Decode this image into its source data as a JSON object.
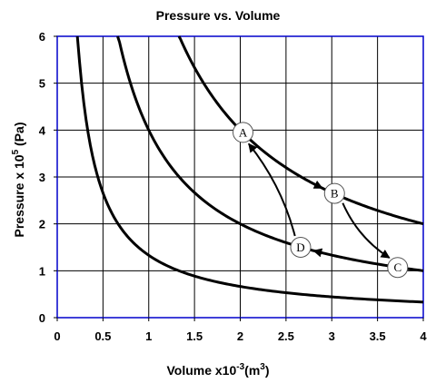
{
  "chart_data": {
    "type": "line",
    "title": "Pressure vs. Volume",
    "xlabel": {
      "text": "Volume x10",
      "sup": "-3",
      "unit": "(m",
      "unit_sup": "3",
      "close": ")"
    },
    "ylabel": {
      "text": "Pressure x 10",
      "sup": "5",
      "unit": " (Pa)"
    },
    "xlim": [
      0,
      4
    ],
    "ylim": [
      0,
      6
    ],
    "x_ticks": [
      "0",
      "0.5",
      "1",
      "1.5",
      "2",
      "2.5",
      "3",
      "3.5",
      "4"
    ],
    "y_ticks": [
      "0",
      "1",
      "2",
      "3",
      "4",
      "5",
      "6"
    ],
    "grid": true,
    "series": [
      {
        "k": 1.33,
        "x_start": 0.22,
        "x_end": 4.0
      },
      {
        "k": 4.0,
        "x_start": 0.66,
        "x_end": 4.0
      },
      {
        "k": 8.0,
        "x_start": 1.33,
        "x_end": 4.0
      }
    ],
    "points": [
      {
        "label": "A",
        "x": 2.03,
        "y": 3.95
      },
      {
        "label": "B",
        "x": 3.03,
        "y": 2.65
      },
      {
        "label": "C",
        "x": 3.72,
        "y": 1.07
      },
      {
        "label": "D",
        "x": 2.66,
        "y": 1.5
      }
    ],
    "arrows": [
      {
        "from": "A",
        "to": "B",
        "along_k": 8.0
      },
      {
        "from": "B",
        "to": "C",
        "curved": true
      },
      {
        "from": "C",
        "to": "D",
        "along_k": 4.0
      },
      {
        "from": "D",
        "to": "A",
        "curved": true
      }
    ],
    "colors": {
      "curve": "#000000",
      "grid": "#000000",
      "frame": "#0000cc",
      "marker_fill": "#ffffff"
    }
  }
}
